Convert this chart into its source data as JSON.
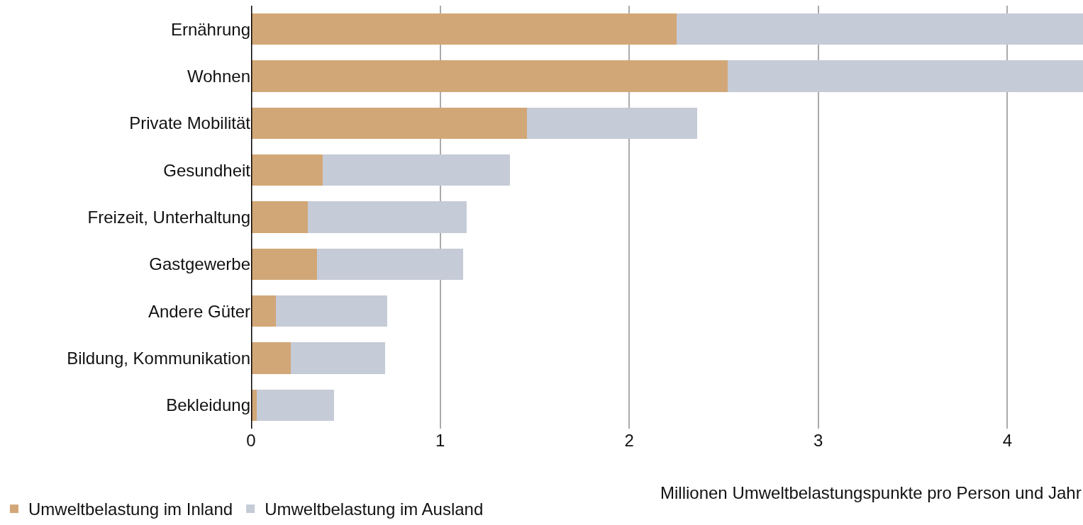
{
  "chart_data": {
    "type": "bar",
    "orientation": "horizontal",
    "stacked": true,
    "categories": [
      "Ernährung",
      "Wohnen",
      "Private Mobilität",
      "Gesundheit",
      "Freizeit, Unterhaltung",
      "Gastgewerbe",
      "Andere Güter",
      "Bildung, Kommunikation",
      "Bekleidung"
    ],
    "series": [
      {
        "name": "Umweltbelastung im Inland",
        "color": "#d2a777",
        "values": [
          2.25,
          2.52,
          1.46,
          0.38,
          0.3,
          0.35,
          0.13,
          0.21,
          0.03
        ]
      },
      {
        "name": "Umweltbelastung im Ausland",
        "color": "#c5cbd7",
        "values": [
          2.15,
          1.88,
          0.9,
          0.99,
          0.84,
          0.77,
          0.59,
          0.5,
          0.41
        ]
      }
    ],
    "xlim": [
      0,
      4.4
    ],
    "xticks": [
      0,
      1,
      2,
      3,
      4
    ],
    "xlabel": "Millionen Umweltbelastungspunkte pro Person und Jahr",
    "grid": "x",
    "legend": "bottom left"
  }
}
